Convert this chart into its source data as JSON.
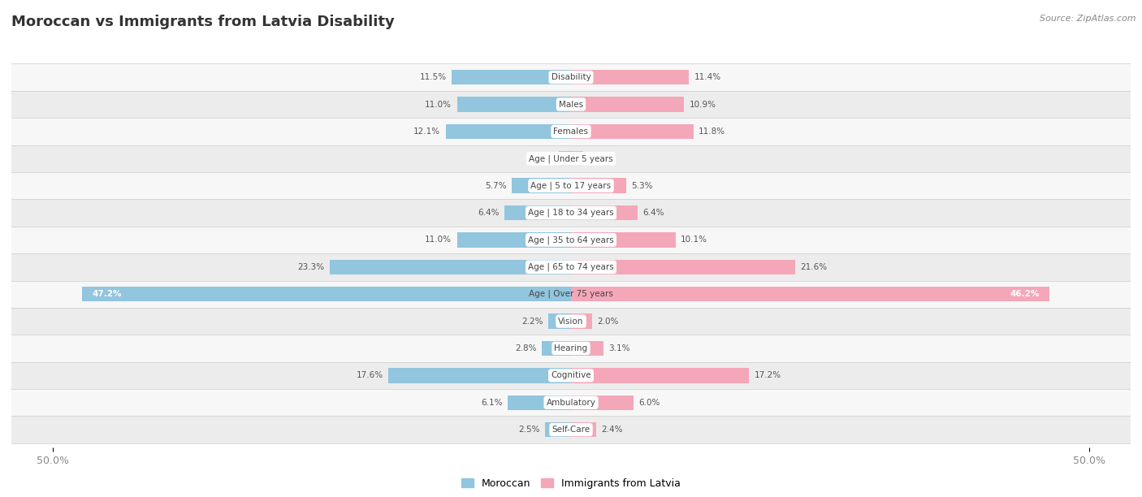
{
  "title": "Moroccan vs Immigrants from Latvia Disability",
  "source": "Source: ZipAtlas.com",
  "categories": [
    "Disability",
    "Males",
    "Females",
    "Age | Under 5 years",
    "Age | 5 to 17 years",
    "Age | 18 to 34 years",
    "Age | 35 to 64 years",
    "Age | 65 to 74 years",
    "Age | Over 75 years",
    "Vision",
    "Hearing",
    "Cognitive",
    "Ambulatory",
    "Self-Care"
  ],
  "moroccan_values": [
    11.5,
    11.0,
    12.1,
    1.2,
    5.7,
    6.4,
    11.0,
    23.3,
    47.2,
    2.2,
    2.8,
    17.6,
    6.1,
    2.5
  ],
  "latvia_values": [
    11.4,
    10.9,
    11.8,
    1.2,
    5.3,
    6.4,
    10.1,
    21.6,
    46.2,
    2.0,
    3.1,
    17.2,
    6.0,
    2.4
  ],
  "moroccan_color": "#92c5de",
  "latvia_color": "#f4a7b9",
  "axis_limit": 50.0,
  "legend_moroccan": "Moroccan",
  "legend_latvia": "Immigrants from Latvia",
  "over75_label_color": "white",
  "row_colors": [
    "#f7f7f7",
    "#ececec"
  ]
}
